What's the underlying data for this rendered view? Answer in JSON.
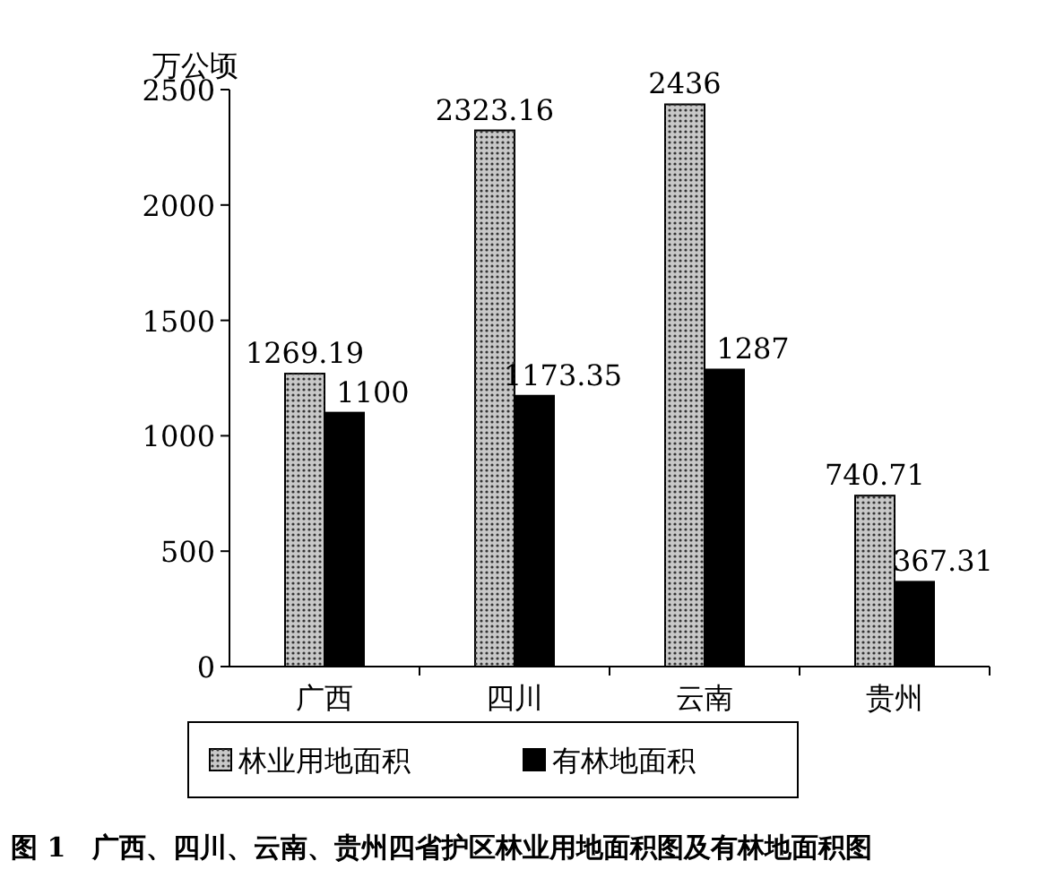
{
  "chart_data": {
    "type": "bar",
    "title": "图 1　广西、四川、云南、贵州四省护区林业用地面积图及有林地面积图",
    "ylabel": "万公顷",
    "categories": [
      "广西",
      "四川",
      "云南",
      "贵州"
    ],
    "series": [
      {
        "name": "林业用地面积",
        "color": "#c8c8c8",
        "values": [
          1269.19,
          2323.16,
          2436,
          740.71
        ]
      },
      {
        "name": "有林地面积",
        "color": "#000000",
        "values": [
          1100,
          1173.35,
          1287,
          367.31
        ]
      }
    ],
    "ylim": [
      0,
      2500
    ],
    "yticks": [
      0,
      500,
      1000,
      1500,
      2000,
      2500
    ],
    "data_labels": true,
    "legend": "bottom",
    "grid": false
  }
}
